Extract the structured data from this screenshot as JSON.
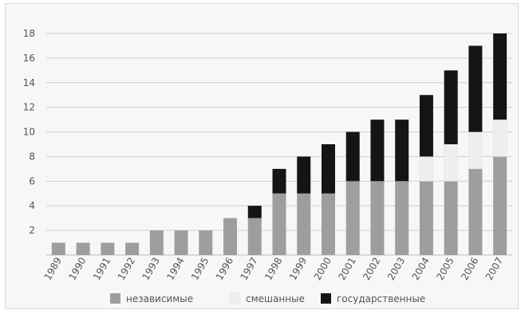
{
  "chart_data": {
    "type": "bar",
    "stacked": true,
    "categories": [
      "1989",
      "1990",
      "1991",
      "1992",
      "1993",
      "1994",
      "1995",
      "1996",
      "1997",
      "1998",
      "1999",
      "2000",
      "2001",
      "2002",
      "2003",
      "2004",
      "2005",
      "2006",
      "2007"
    ],
    "series": [
      {
        "name": "независимые",
        "color": "#9e9e9e",
        "values": [
          1,
          1,
          1,
          1,
          2,
          2,
          2,
          3,
          3,
          5,
          5,
          5,
          6,
          6,
          6,
          6,
          6,
          7,
          8
        ]
      },
      {
        "name": "смешанные",
        "color": "#eeeeee",
        "values": [
          0,
          0,
          0,
          0,
          0,
          0,
          0,
          0,
          0,
          0,
          0,
          0,
          0,
          0,
          0,
          2,
          3,
          3,
          3
        ]
      },
      {
        "name": "государственные",
        "color": "#151515",
        "values": [
          0,
          0,
          0,
          0,
          0,
          0,
          0,
          0,
          1,
          2,
          3,
          4,
          4,
          5,
          5,
          5,
          6,
          7,
          7
        ]
      }
    ],
    "y_ticks": [
      "2",
      "4",
      "6",
      "8",
      "10",
      "12",
      "14",
      "16",
      "18"
    ],
    "ylim": [
      0,
      18
    ],
    "grid": true,
    "legend_position": "bottom",
    "title": "",
    "xlabel": "",
    "ylabel": ""
  }
}
